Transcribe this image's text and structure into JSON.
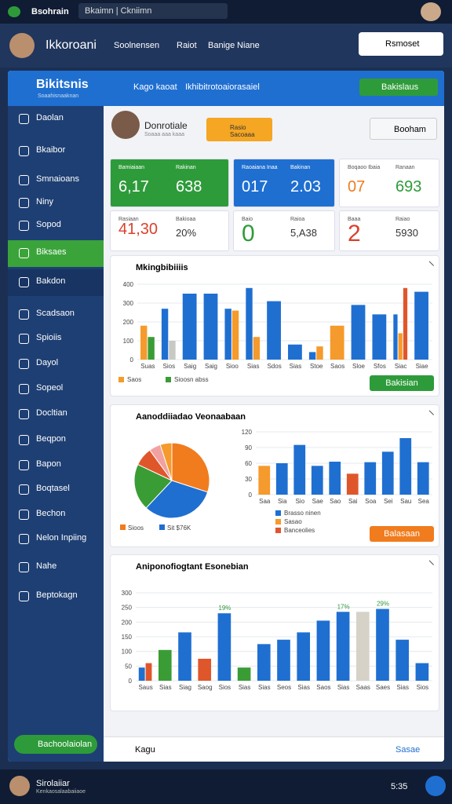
{
  "status_bar": {
    "app": "Bsohrain",
    "search": "Bkaimn | Ckniimn"
  },
  "header": {
    "user": "Ikkoroani",
    "nav": [
      "Soolnensen",
      "Raiot",
      "Banige",
      "Niane"
    ],
    "notice": "Rsmoset"
  },
  "panel": {
    "brand": "Bikitsnis",
    "brand_sub": "Soaahisnaaknan",
    "tab": "Kago kaoat",
    "tab_title": "Ikhibitrotoaiorasaiel",
    "action": "Bakislaus"
  },
  "sidebar": {
    "items": [
      "Daolan",
      "Bkaibor",
      "Smnaioans",
      "Niny",
      "Sopod",
      "Biksaes",
      "Bakdon",
      "Scadsaon",
      "Spioiis",
      "Dayol",
      "Sopeol",
      "Docltian",
      "Beqpon",
      "Bapon",
      "Boqtasel",
      "Bechon",
      "Nelon Inpiing",
      "Nahe",
      "Beptokagn"
    ],
    "active": 5,
    "footer": "Bachoolaiolan"
  },
  "profile": {
    "name": "Donrotiale",
    "sub": "Soaaa aaa kaaa",
    "badge": "Rasio Sacoaaa",
    "dropdown": "Booham"
  },
  "stats": [
    {
      "label": "Bamiaiaan",
      "label2": "Rakinan",
      "value": "6,17",
      "value2": "638",
      "bg": "#2e9b3a",
      "fg": "#ffffff",
      "fg2": "#ffffff"
    },
    {
      "label": "Raoaiana Inaa",
      "label2": "Bakinan",
      "value": "017",
      "value2": "2.03",
      "bg": "#1f6fd1",
      "fg": "#ffffff",
      "fg2": "#ffffff"
    },
    {
      "label": "Boqaoo Ibaia",
      "label2": "Ranaan",
      "value": "07",
      "value2": "693",
      "bg": "#ffffff",
      "fg": "#f07c1e",
      "fg2": "#2e9b3a"
    },
    {
      "label": "Rasiaan",
      "label2": "Bakioaa",
      "value": "41,30",
      "value2": "20%",
      "bg": "#ffffff",
      "fg": "#d9412b",
      "fg2": "#333333"
    },
    {
      "label": "Baio",
      "label2": "Raioa",
      "value": "0",
      "value2": "5,A38",
      "bg": "#ffffff",
      "fg": "#2e9b3a",
      "fg2": "#333333"
    },
    {
      "label": "Baaa",
      "label2": "Raiao",
      "value": "2",
      "value2": "5930",
      "bg": "#ffffff",
      "fg": "#d9412b",
      "fg2": "#333333"
    }
  ],
  "charts": [
    {
      "type": "bar",
      "title": "Mkingbibiiiis",
      "button": "Bakisian",
      "button_color": "#2e9b3a",
      "categories": [
        "Suas",
        "Sios",
        "Saig",
        "Saig",
        "Sioo",
        "Sias",
        "Sdos",
        "Sias",
        "Stoe",
        "Saos",
        "Sloe",
        "Sfos",
        "Siac",
        "Siae"
      ],
      "ylim": [
        0,
        400
      ],
      "yticks": [
        0,
        100,
        200,
        300,
        400
      ],
      "series": [
        {
          "color": "#1f6fd1",
          "values": [
            null,
            270,
            350,
            350,
            270,
            380,
            310,
            80,
            40,
            null,
            290,
            240,
            240,
            360
          ]
        },
        {
          "name": "Saos",
          "color": "#f59a2c",
          "values": [
            180,
            null,
            null,
            null,
            260,
            120,
            null,
            null,
            70,
            180,
            null,
            null,
            140,
            null
          ]
        },
        {
          "name": "Sioosn abss",
          "color": "#3a9c35",
          "values": [
            120,
            null,
            null,
            null,
            null,
            null,
            null,
            null,
            null,
            null,
            null,
            null,
            null,
            null
          ]
        },
        {
          "color": "#c9c9c4",
          "values": [
            null,
            100,
            null,
            null,
            null,
            null,
            null,
            null,
            null,
            null,
            null,
            null,
            null,
            null
          ]
        },
        {
          "color": "#e0562b",
          "values": [
            null,
            null,
            null,
            null,
            null,
            null,
            null,
            null,
            null,
            null,
            null,
            null,
            380,
            null
          ]
        }
      ]
    },
    {
      "type": "pie-bar",
      "title": "Aanoddiiadao Veonaabaan",
      "button": "Balasaan",
      "button_color": "#f07c1e",
      "pie": {
        "values": [
          30,
          32,
          20,
          8,
          5,
          5
        ],
        "colors": [
          "#f07c1e",
          "#1f6fd1",
          "#3a9c35",
          "#e0562b",
          "#f2a1a1",
          "#f59a2c"
        ],
        "legend": [
          "Sioos",
          "Sit $76K"
        ]
      },
      "categories": [
        "Saa",
        "Sia",
        "Sio",
        "Sae",
        "Sao",
        "Sai",
        "Soa",
        "Sei",
        "Sau",
        "Sea"
      ],
      "ylim": [
        0,
        120
      ],
      "yticks": [
        0,
        30,
        60,
        90,
        120
      ],
      "series": [
        {
          "name": "Brasso ninen",
          "color": "#1f6fd1",
          "values": [
            null,
            60,
            95,
            55,
            63,
            null,
            62,
            82,
            108,
            62
          ]
        },
        {
          "name": "Sasao",
          "color": "#f59a2c",
          "values": [
            55,
            null,
            null,
            null,
            null,
            null,
            null,
            null,
            null,
            null
          ]
        },
        {
          "name": "Banceolies",
          "color": "#e0562b",
          "values": [
            null,
            null,
            null,
            null,
            null,
            40,
            null,
            null,
            null,
            null
          ]
        }
      ]
    },
    {
      "type": "bar",
      "title": "Aniponofiogtant Esonebian",
      "categories": [
        "Saus",
        "Sias",
        "Siag",
        "Saog",
        "Sios",
        "Sias",
        "Sias",
        "Seos",
        "Sias",
        "Saos",
        "Sias",
        "Saas",
        "Saes",
        "Sias",
        "Sios"
      ],
      "ylim": [
        0,
        300
      ],
      "yticks": [
        0,
        50,
        100,
        150,
        200,
        250,
        300
      ],
      "series": [
        {
          "color": "#1f6fd1",
          "values": [
            45,
            null,
            165,
            null,
            230,
            null,
            125,
            140,
            165,
            205,
            235,
            null,
            245,
            140,
            60
          ],
          "value_labels": [
            null,
            null,
            null,
            null,
            "19%",
            null,
            null,
            null,
            null,
            null,
            "17%",
            null,
            "29%",
            null,
            null
          ]
        },
        {
          "color": "#e0562b",
          "values": [
            60,
            null,
            null,
            75,
            null,
            null,
            null,
            null,
            null,
            null,
            null,
            null,
            null,
            null,
            null
          ]
        },
        {
          "color": "#3a9c35",
          "values": [
            null,
            105,
            null,
            null,
            null,
            45,
            null,
            null,
            null,
            null,
            null,
            null,
            null,
            null,
            null
          ]
        },
        {
          "color": "#d6d2c8",
          "values": [
            null,
            null,
            null,
            null,
            null,
            null,
            null,
            null,
            null,
            null,
            null,
            235,
            null,
            null,
            null
          ]
        }
      ]
    }
  ],
  "footer": {
    "left": "Kagu",
    "right": "Sasae"
  },
  "bottom_bar": {
    "name": "Sirolaiiar",
    "sub": "Kenkaosalaabaiiaoe",
    "time": "5:35"
  }
}
